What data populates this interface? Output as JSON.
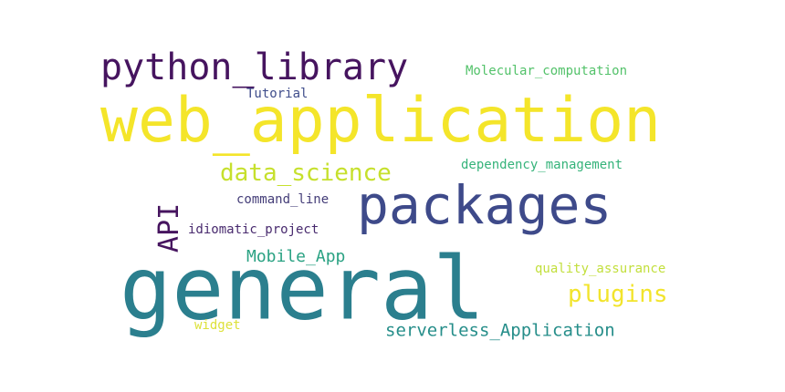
{
  "words": {
    "web_application": {
      "text": "web_application",
      "color": "#f4e52a"
    },
    "general": {
      "text": "general",
      "color": "#2b7f8e"
    },
    "packages": {
      "text": "packages",
      "color": "#3e4a8a"
    },
    "python_library": {
      "text": "python_library",
      "color": "#46145f"
    },
    "data_science": {
      "text": "data_science",
      "color": "#c6e02c"
    },
    "API": {
      "text": "API",
      "color": "#46145f"
    },
    "plugins": {
      "text": "plugins",
      "color": "#f2e42c"
    },
    "Mobile_App": {
      "text": "Mobile_App",
      "color": "#2aa283"
    },
    "serverless_Application": {
      "text": "serverless_Application",
      "color": "#268e8a"
    },
    "Molecular_computation": {
      "text": "Molecular_computation",
      "color": "#53c26a"
    },
    "dependency_management": {
      "text": "dependency_management",
      "color": "#35b37a"
    },
    "quality_assurance": {
      "text": "quality_assurance",
      "color": "#c2df3c"
    },
    "idiomatic_project": {
      "text": "idiomatic_project",
      "color": "#482a6e"
    },
    "command_line": {
      "text": "command_line",
      "color": "#443d78"
    },
    "Tutorial": {
      "text": "Tutorial",
      "color": "#3f4d8b"
    },
    "widget": {
      "text": "widget",
      "color": "#dde13a"
    }
  }
}
